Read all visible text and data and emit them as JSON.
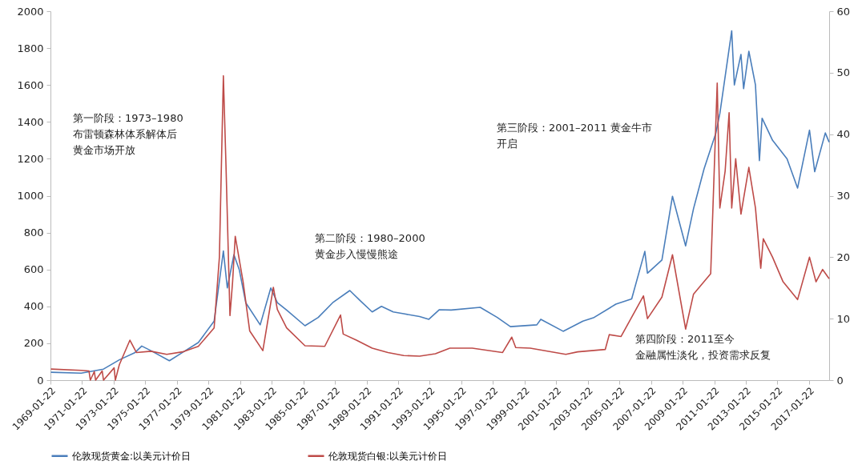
{
  "chart_data": {
    "type": "line",
    "legend": "bottom",
    "marker": "none",
    "line_style": "solid",
    "grid": false,
    "xlim": [
      "1969-01-22",
      "2018-05"
    ],
    "xticks": [
      "1969-01-22",
      "1971-01-22",
      "1973-01-22",
      "1975-01-22",
      "1977-01-22",
      "1979-01-22",
      "1981-01-22",
      "1983-01-22",
      "1985-01-22",
      "1987-01-22",
      "1989-01-22",
      "1991-01-22",
      "1993-01-22",
      "1995-01-22",
      "1997-01-22",
      "1999-01-22",
      "2001-01-22",
      "2003-01-22",
      "2005-01-22",
      "2007-01-22",
      "2009-01-22",
      "2011-01-22",
      "2013-01-22",
      "2015-01-22",
      "2017-01-22"
    ],
    "ylim": [
      0,
      2000
    ],
    "yticks": [
      0,
      200,
      400,
      600,
      800,
      1000,
      1200,
      1400,
      1600,
      1800,
      2000
    ],
    "y2lim": [
      0,
      60
    ],
    "y2ticks": [
      0,
      10,
      20,
      30,
      40,
      50,
      60
    ],
    "annotations": [
      "第一阶段：1973–1980",
      "布雷顿森林体系解体后",
      "黄金市场开放",
      "第二阶段：1980–2000",
      "黄金步入慢慢熊途",
      "第三阶段：2001–2011 黄金牛市",
      "开启",
      "第四阶段：2011至今",
      "金融属性淡化，投资需求反复"
    ],
    "series": [
      {
        "name": "伦敦现货黄金:以美元计价日",
        "color": "#4a7ebb",
        "x": [
          "1969-02",
          "1971-01",
          "1972-06",
          "1973-06",
          "1974-06",
          "1974-11",
          "1975-06",
          "1976-08",
          "1977-06",
          "1978-06",
          "1979-06",
          "1980-01",
          "1980-04",
          "1980-09",
          "1981-01",
          "1981-06",
          "1982-05",
          "1983-01",
          "1983-06",
          "1984-01",
          "1985-03",
          "1986-01",
          "1986-12",
          "1988-01",
          "1988-09",
          "1989-06",
          "1990-01",
          "1990-10",
          "1991-06",
          "1992-06",
          "1993-01",
          "1993-09",
          "1994-06",
          "1996-04",
          "1997-05",
          "1998-03",
          "1999-11",
          "2000-02",
          "2001-07",
          "2002-10",
          "2003-06",
          "2004-11",
          "2005-11",
          "2006-09",
          "2006-11",
          "2007-10",
          "2008-06",
          "2009-04",
          "2009-10",
          "2010-06",
          "2011-03",
          "2011-06",
          "2012-03",
          "2012-05",
          "2012-10",
          "2012-12",
          "2013-04",
          "2013-09",
          "2013-12",
          "2014-02",
          "2014-10",
          "2015-09",
          "2016-05",
          "2017-02",
          "2017-06",
          "2018-02",
          "2018-05"
        ],
        "values": [
          43,
          38,
          60,
          110,
          150,
          185,
          160,
          105,
          150,
          204,
          320,
          700,
          500,
          680,
          600,
          420,
          300,
          500,
          420,
          380,
          295,
          340,
          420,
          486,
          430,
          370,
          400,
          370,
          360,
          345,
          330,
          382,
          380,
          395,
          340,
          290,
          300,
          330,
          265,
          320,
          338,
          412,
          440,
          698,
          580,
          651,
          997,
          728,
          930,
          1145,
          1340,
          1445,
          1894,
          1600,
          1766,
          1580,
          1783,
          1600,
          1190,
          1420,
          1300,
          1200,
          1041,
          1355,
          1130,
          1340,
          1290
        ]
      },
      {
        "name": "伦敦现货白银:以美元计价日",
        "color": "#be4b48",
        "axis": "y2",
        "x": [
          "1969-02",
          "1971-01",
          "1971-07",
          "1971-08",
          "1971-11",
          "1971-12",
          "1972-05",
          "1972-06",
          "1973-02",
          "1973-03",
          "1973-06",
          "1974-02",
          "1974-07",
          "1975-06",
          "1976-06",
          "1977-06",
          "1978-06",
          "1979-06",
          "1979-10",
          "1980-01",
          "1980-03",
          "1980-06",
          "1980-08",
          "1980-10",
          "1981-04",
          "1981-09",
          "1982-07",
          "1983-03",
          "1983-06",
          "1984-01",
          "1985-03",
          "1986-06",
          "1987-06",
          "1987-08",
          "1988-06",
          "1989-06",
          "1990-06",
          "1991-06",
          "1992-06",
          "1993-06",
          "1994-05",
          "1995-10",
          "1997-09",
          "1998-04",
          "1998-07",
          "1999-06",
          "2001-09",
          "2002-06",
          "2004-03",
          "2004-06",
          "2005-03",
          "2006-08",
          "2006-11",
          "2007-10",
          "2008-06",
          "2009-04",
          "2009-10",
          "2010-11",
          "2011-04",
          "2011-06",
          "2011-10",
          "2012-01",
          "2012-03",
          "2012-06",
          "2012-10",
          "2013-04",
          "2013-09",
          "2014-01",
          "2014-03",
          "2014-10",
          "2015-06",
          "2016-05",
          "2017-02",
          "2017-07",
          "2017-12",
          "2018-05"
        ],
        "values": [
          1.8,
          1.6,
          1.5,
          0,
          1.4,
          0,
          1.5,
          0,
          2,
          0,
          2.5,
          6.5,
          4.5,
          4.7,
          4.2,
          4.6,
          5.5,
          8.5,
          20,
          49.5,
          35,
          10.5,
          16,
          23.4,
          16,
          8,
          4.8,
          15.1,
          11.5,
          8.5,
          5.6,
          5.5,
          10.6,
          7.5,
          6.5,
          5.2,
          4.5,
          4,
          3.9,
          4.3,
          5.2,
          5.2,
          4.5,
          7,
          5.3,
          5.2,
          4.2,
          4.6,
          5,
          7.4,
          7.1,
          13.7,
          10,
          13.5,
          20.4,
          8.3,
          14,
          17.3,
          48.3,
          28,
          34,
          43.5,
          28,
          36,
          27,
          34.6,
          28,
          18.2,
          23,
          20,
          16,
          13.1,
          20,
          16,
          18,
          16.5
        ]
      }
    ]
  }
}
